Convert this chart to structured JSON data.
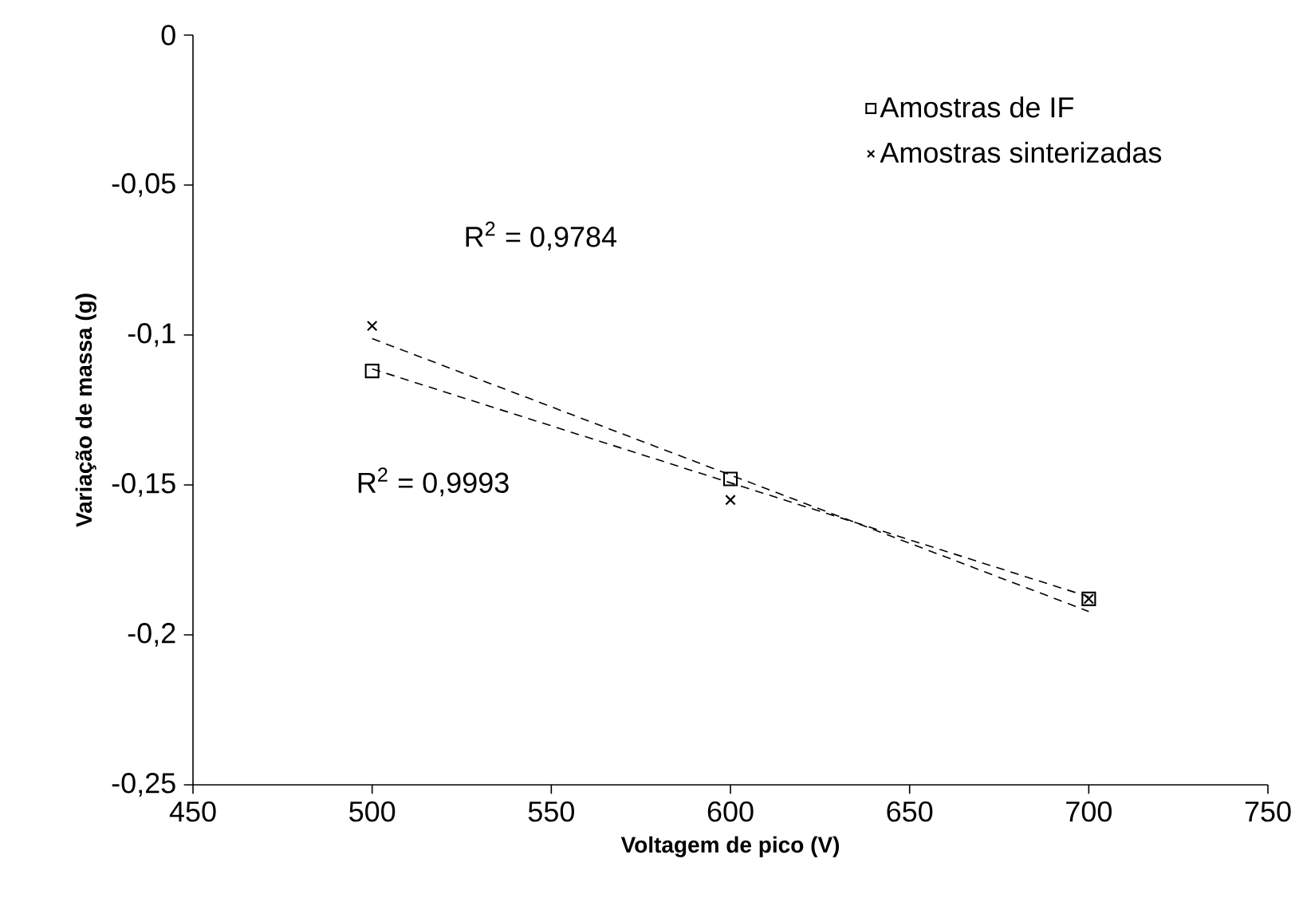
{
  "chart_data": {
    "type": "scatter",
    "xlabel": "Voltagem de pico (V)",
    "ylabel": "Variação de massa (g)",
    "xlim": [
      450,
      750
    ],
    "xticks": [
      450,
      500,
      550,
      600,
      650,
      700,
      750
    ],
    "ylim": [
      -0.25,
      0
    ],
    "yticks": [
      {
        "value": -0.25,
        "label": "-0,25"
      },
      {
        "value": -0.2,
        "label": "-0,2"
      },
      {
        "value": -0.15,
        "label": "-0,15"
      },
      {
        "value": -0.1,
        "label": "-0,1"
      },
      {
        "value": -0.05,
        "label": "-0,05"
      },
      0
    ],
    "grid": false,
    "legend": "top right",
    "series": [
      {
        "name": "Amostras de IF",
        "marker": "square",
        "color": "#000000",
        "x": [
          500,
          600,
          700
        ],
        "values": [
          -0.112,
          -0.148,
          -0.188
        ]
      },
      {
        "name": "Amostras sinterizadas",
        "marker": "cross",
        "color": "#000000",
        "x": [
          500,
          600,
          700
        ],
        "values": [
          -0.097,
          -0.155,
          -0.188
        ]
      },
      {
        "type": "line",
        "line_style": "dashed",
        "marker": "none",
        "color": "#000000",
        "x": [
          500,
          700
        ],
        "values": [
          -0.1113,
          -0.1873
        ]
      },
      {
        "type": "line",
        "line_style": "dashed",
        "marker": "none",
        "color": "#000000",
        "x": [
          500,
          700
        ],
        "values": [
          -0.1012,
          -0.1922
        ]
      }
    ],
    "annotations": [
      "R$^{2}$ = 0,9784",
      "R$^{2}$ = 0,9993"
    ]
  }
}
